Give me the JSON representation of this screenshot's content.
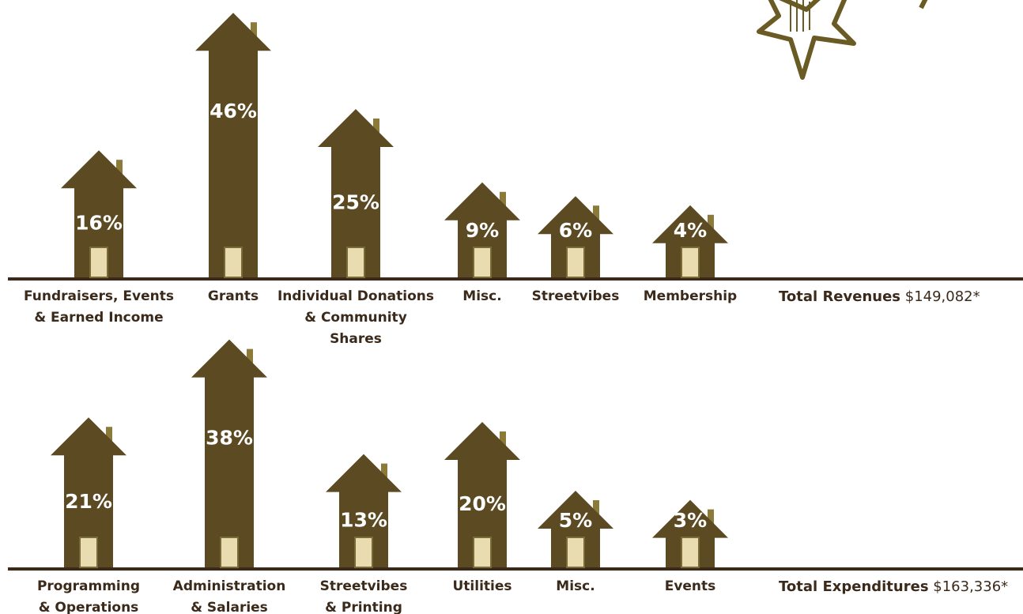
{
  "chart_data": [
    {
      "type": "bar",
      "categories": [
        "Fundraisers, Events\n& Earned Income",
        "Grants",
        "Individual Donations\n& Community Shares",
        "Misc.",
        "Streetvibes",
        "Membership"
      ],
      "values": [
        16,
        46,
        25,
        9,
        6,
        4
      ],
      "value_labels": [
        "16%",
        "46%",
        "25%",
        "9%",
        "6%",
        "4%"
      ],
      "color": "#5b4a22",
      "total_label": "Total Revenues",
      "total_value": "$149,082*"
    },
    {
      "type": "bar",
      "categories": [
        "Programming\n& Operations",
        "Administration\n& Salaries",
        "Streetvibes\n& Printing",
        "Utilities",
        "Misc.",
        "Events"
      ],
      "values": [
        21,
        38,
        13,
        20,
        5,
        3
      ],
      "value_labels": [
        "21%",
        "38%",
        "13%",
        "20%",
        "5%",
        "3%"
      ],
      "color": "#5b4a22",
      "total_label": "Total Expenditures",
      "total_value": "$163,336*"
    }
  ]
}
